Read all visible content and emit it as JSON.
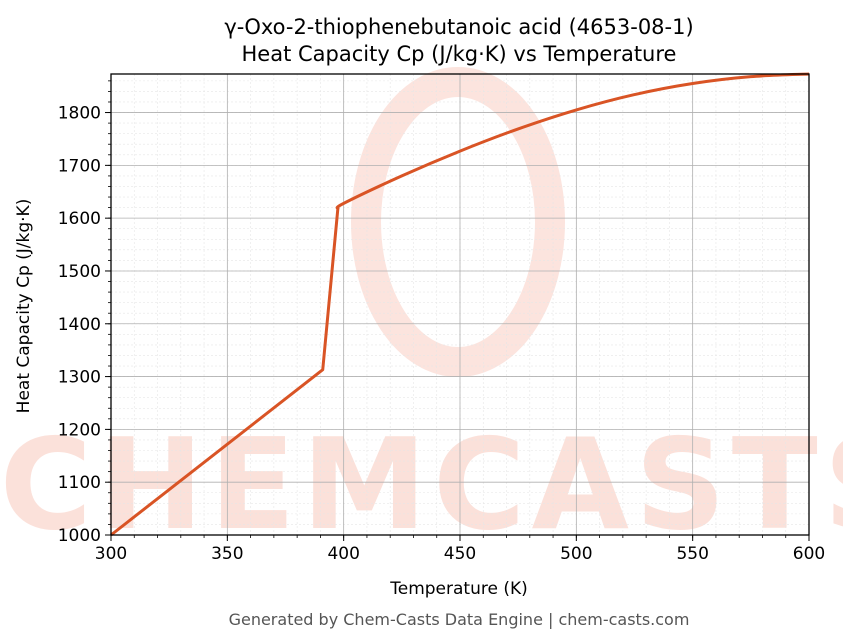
{
  "chart_data": {
    "type": "line",
    "title": "γ-Oxo-2-thiophenebutanoic acid (4653-08-1)",
    "subtitle": "Heat Capacity Cp (J/kg·K) vs Temperature",
    "xlabel": "Temperature (K)",
    "ylabel": "Heat Capacity Cp (J/kg·K)",
    "xlim": [
      300,
      600
    ],
    "ylim": [
      1000,
      1873
    ],
    "xticks": [
      300,
      350,
      400,
      450,
      500,
      550,
      600
    ],
    "yticks": [
      1000,
      1100,
      1200,
      1300,
      1400,
      1500,
      1600,
      1700,
      1800
    ],
    "grid": true,
    "legend": "none",
    "series": [
      {
        "color": "#d95425",
        "x": [
          300,
          391,
          397.5,
          400,
          425,
          450,
          475,
          500,
          525,
          550,
          575,
          600
        ],
        "y": [
          1000,
          1313,
          1618,
          1628,
          1680,
          1727,
          1769,
          1805,
          1834,
          1855,
          1868,
          1873
        ]
      }
    ]
  },
  "watermark": "CHEMCASTS",
  "footer": "Generated by Chem-Casts Data Engine | chem-casts.com"
}
